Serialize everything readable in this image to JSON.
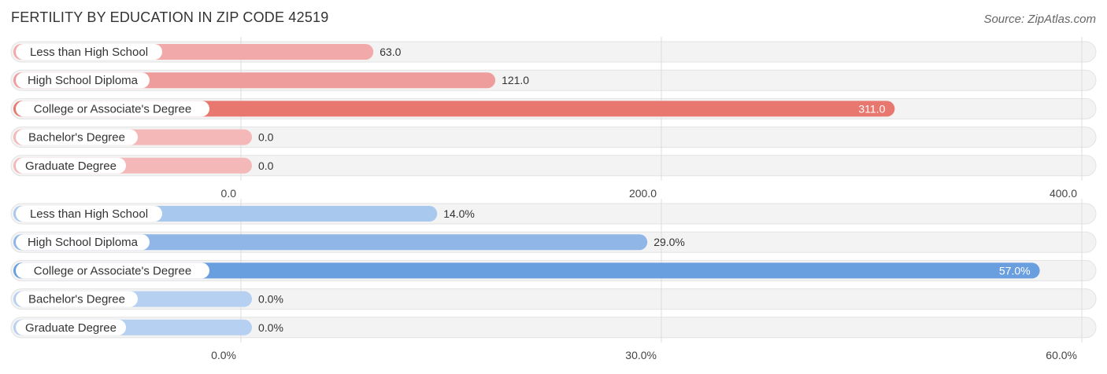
{
  "title": "FERTILITY BY EDUCATION IN ZIP CODE 42519",
  "source": "Source: ZipAtlas.com",
  "chart_data": [
    {
      "type": "bar",
      "orientation": "horizontal",
      "categories": [
        "Less than High School",
        "High School Diploma",
        "College or Associate's Degree",
        "Bachelor's Degree",
        "Graduate Degree"
      ],
      "values": [
        63.0,
        121.0,
        311.0,
        0.0,
        0.0
      ],
      "value_labels": [
        "63.0",
        "121.0",
        "311.0",
        "0.0",
        "0.0"
      ],
      "xlim": [
        0,
        400
      ],
      "ticks": [
        0,
        200,
        400
      ],
      "tick_labels": [
        "0.0",
        "200.0",
        "400.0"
      ],
      "colors": [
        "#f2a9a9",
        "#ee9c9c",
        "#e8776f",
        "#f4b8b8",
        "#f4b8b8"
      ],
      "highlight_index": 2
    },
    {
      "type": "bar",
      "orientation": "horizontal",
      "categories": [
        "Less than High School",
        "High School Diploma",
        "College or Associate's Degree",
        "Bachelor's Degree",
        "Graduate Degree"
      ],
      "values": [
        14.0,
        29.0,
        57.0,
        0.0,
        0.0
      ],
      "value_labels": [
        "14.0%",
        "29.0%",
        "57.0%",
        "0.0%",
        "0.0%"
      ],
      "xlim": [
        0,
        60
      ],
      "ticks": [
        0,
        30,
        60
      ],
      "tick_labels": [
        "0.0%",
        "30.0%",
        "60.0%"
      ],
      "colors": [
        "#a9c8ee",
        "#8fb6e6",
        "#6a9fdf",
        "#b6d0f1",
        "#b6d0f1"
      ],
      "highlight_index": 2
    }
  ]
}
